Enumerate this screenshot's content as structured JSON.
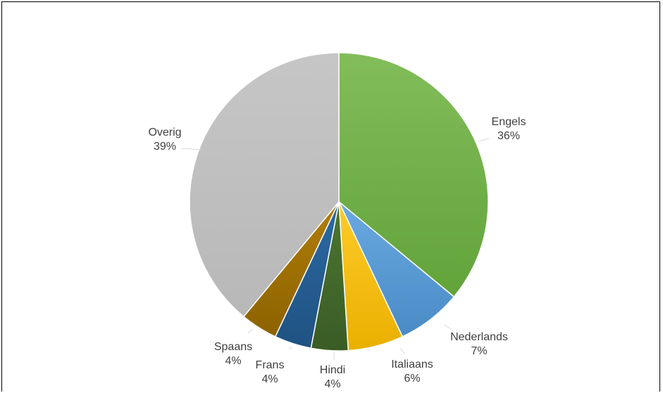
{
  "chart_data": {
    "type": "pie",
    "title": "",
    "categories": [
      "Engels",
      "Nederlands",
      "Italiaans",
      "Hindi",
      "Frans",
      "Spaans",
      "Overig"
    ],
    "values": [
      36,
      7,
      6,
      4,
      4,
      4,
      39
    ],
    "labels": [
      "36%",
      "7%",
      "6%",
      "4%",
      "4%",
      "4%",
      "39%"
    ],
    "colors": [
      "#70ad47",
      "#5b9bd5",
      "#ffc000",
      "#43682b",
      "#255e91",
      "#9e7000",
      "#bfbfbf"
    ],
    "start_angle_deg": 0,
    "direction": "clockwise",
    "legend": "none",
    "data_labels": "category-and-percent-outside"
  }
}
